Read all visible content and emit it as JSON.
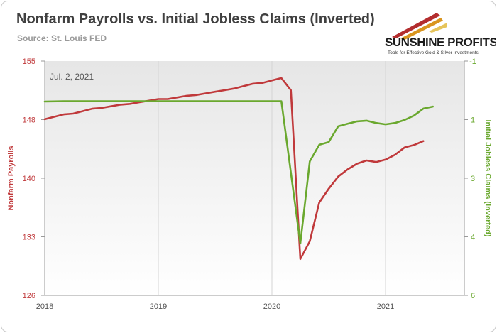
{
  "header": {
    "title": "Nonfarm Payrolls vs. Initial Jobless Claims (Inverted)",
    "source": "Source: St. Louis FED"
  },
  "logo": {
    "brand": "SUNSHINE PROFITS",
    "tagline": "Tools for Effective Gold & Silver Investments"
  },
  "colors": {
    "payrolls": "#c0393b",
    "claims": "#6aa82e",
    "axis_left": "#c0393b",
    "axis_right": "#6aa82e",
    "plot_bg_top": "#e8e8e8",
    "plot_bg_bottom": "#ffffff"
  },
  "chart_data": {
    "type": "line",
    "annotation": "Jul. 2, 2021",
    "xlabel_ticks": [
      "2018",
      "2019",
      "2020",
      "2021"
    ],
    "x_range": [
      "2018-01",
      "2021-10"
    ],
    "y_left": {
      "label": "Nonfarm Payrolls",
      "ticks": [
        "126",
        "133",
        "140",
        "148",
        "155"
      ],
      "range": [
        126,
        155
      ]
    },
    "y_right": {
      "label": "Initial Jobless Claims (Inverted)",
      "ticks": [
        "-1",
        "1",
        "3",
        "4",
        "6"
      ],
      "range": [
        -1,
        6
      ],
      "inverted": true
    },
    "grid": "vertical",
    "series": [
      {
        "name": "Nonfarm Payrolls",
        "axis": "left",
        "x": [
          "2018-01",
          "2018-02",
          "2018-03",
          "2018-04",
          "2018-05",
          "2018-06",
          "2018-07",
          "2018-08",
          "2018-09",
          "2018-10",
          "2018-11",
          "2018-12",
          "2019-01",
          "2019-02",
          "2019-03",
          "2019-04",
          "2019-05",
          "2019-06",
          "2019-07",
          "2019-08",
          "2019-09",
          "2019-10",
          "2019-11",
          "2019-12",
          "2020-01",
          "2020-02",
          "2020-03",
          "2020-04",
          "2020-05",
          "2020-06",
          "2020-07",
          "2020-08",
          "2020-09",
          "2020-10",
          "2020-11",
          "2020-12",
          "2021-01",
          "2021-02",
          "2021-03",
          "2021-04",
          "2021-05"
        ],
        "values": [
          147.8,
          148.1,
          148.4,
          148.5,
          148.8,
          149.1,
          149.2,
          149.4,
          149.6,
          149.7,
          149.9,
          150.1,
          150.3,
          150.3,
          150.5,
          150.7,
          150.8,
          151.0,
          151.2,
          151.4,
          151.6,
          151.9,
          152.2,
          152.3,
          152.6,
          152.9,
          151.4,
          130.5,
          132.7,
          137.5,
          139.2,
          140.7,
          141.6,
          142.3,
          142.7,
          142.5,
          142.8,
          143.4,
          144.3,
          144.6,
          145.1
        ]
      },
      {
        "name": "Initial Jobless Claims (Inverted)",
        "axis": "right",
        "x": [
          "2018-01",
          "2018-03",
          "2018-06",
          "2018-09",
          "2018-12",
          "2019-03",
          "2019-06",
          "2019-09",
          "2019-12",
          "2020-01",
          "2020-02",
          "2020-04",
          "2020-05",
          "2020-06",
          "2020-07",
          "2020-08",
          "2020-09",
          "2020-10",
          "2020-11",
          "2020-12",
          "2021-01",
          "2021-02",
          "2021-03",
          "2021-04",
          "2021-05",
          "2021-06"
        ],
        "values": [
          0.21,
          0.2,
          0.2,
          0.2,
          0.2,
          0.2,
          0.2,
          0.2,
          0.2,
          0.2,
          0.2,
          4.45,
          2.0,
          1.5,
          1.42,
          0.95,
          0.87,
          0.8,
          0.78,
          0.85,
          0.89,
          0.85,
          0.76,
          0.63,
          0.42,
          0.36
        ]
      }
    ]
  }
}
